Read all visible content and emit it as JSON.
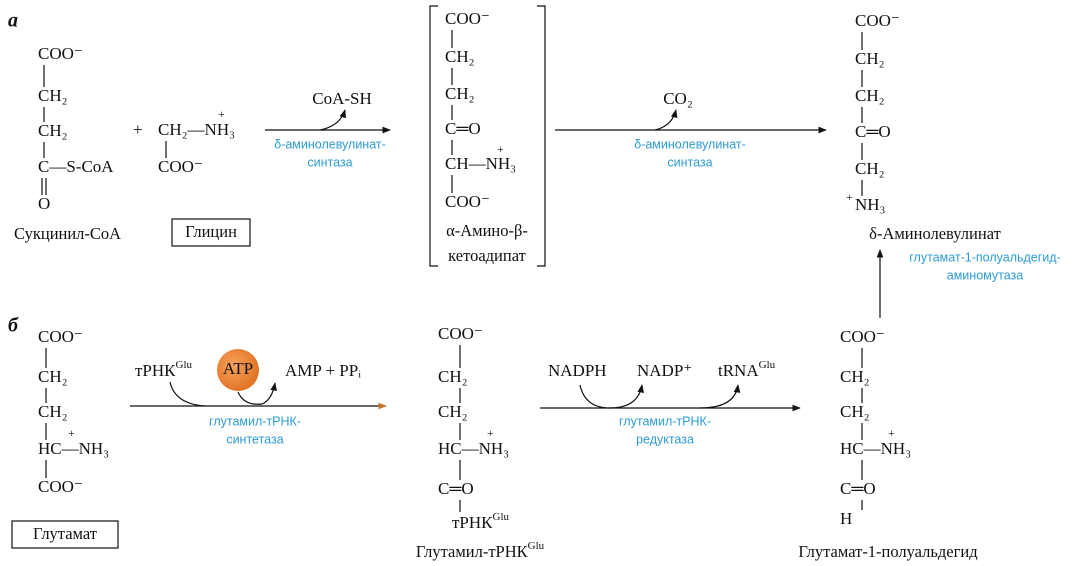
{
  "panel_a": {
    "label": "а",
    "succinyl_coa": {
      "lines": [
        "COO⁻",
        "CH₂",
        "CH₂",
        "C—S-CoA",
        "O"
      ],
      "name": "Сукцинил-CoA"
    },
    "plus": "+",
    "glycine": {
      "lines": [
        "CH₂—NH₃",
        "COO⁻"
      ],
      "charge": "+",
      "name": "Глицин"
    },
    "step_1": {
      "cofactor": "CoA-SH",
      "enzyme": [
        "δ-аминолевулинат-",
        "синтаза"
      ]
    },
    "intermediate": {
      "lines": [
        "COO⁻",
        "CH₂",
        "CH₂",
        "C═O",
        "CH—NH₃",
        "COO⁻"
      ],
      "charge": "+",
      "name": [
        "α-Амино-β-",
        "кетоадипат"
      ]
    },
    "step_2": {
      "cofactor": "CO₂",
      "enzyme": [
        "δ-аминолевулинат-",
        "синтаза"
      ]
    },
    "product": {
      "lines": [
        "COO⁻",
        "CH₂",
        "CH₂",
        "C═O",
        "CH₂",
        "NH₃"
      ],
      "charge": "+",
      "name": "δ-Аминолевулинат"
    }
  },
  "step_3": {
    "enzyme": [
      "глутамат-1-полуальдегид-",
      "аминомутаза"
    ]
  },
  "panel_b": {
    "label": "б",
    "glutamate": {
      "lines": [
        "COO⁻",
        "CH₂",
        "CH₂",
        "HC—NH₃",
        "COO⁻"
      ],
      "charge": "+",
      "name": "Глутамат"
    },
    "step_1": {
      "substrate": {
        "text": "тРНК",
        "sup": "Glu"
      },
      "cofactor": "ATP",
      "products": "AMP + PPᵢ",
      "enzyme": [
        "глутамил-тРНК-",
        "синтетаза"
      ]
    },
    "glutamyl_trna": {
      "lines": [
        "COO⁻",
        "CH₂",
        "CH₂",
        "HC—NH₃",
        "C═O"
      ],
      "charge": "+",
      "tail": {
        "text": "тРНК",
        "sup": "Glu"
      },
      "name": {
        "text": "Глутамил-тРНК",
        "sup": "Glu"
      }
    },
    "step_2": {
      "cofactor_in": "NADPH",
      "cofactor_out": "NADP⁺",
      "released": {
        "text": "tRNA",
        "sup": "Glu"
      },
      "enzyme": [
        "глутамил-тРНК-",
        "редуктаза"
      ]
    },
    "gsa": {
      "lines": [
        "COO⁻",
        "CH₂",
        "CH₂",
        "HC—NH₃",
        "C═O",
        "H"
      ],
      "charge": "+",
      "name": "Глутамат-1-полуальдегид"
    }
  }
}
